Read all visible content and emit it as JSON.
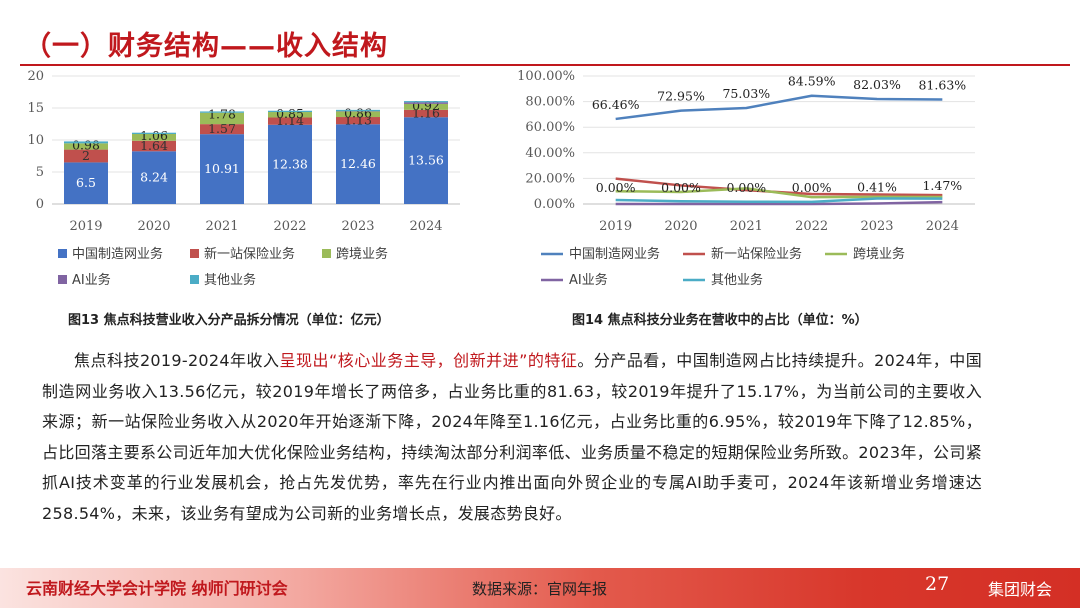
{
  "slide": {
    "title": "（一）财务结构——收入结构",
    "caption_left": "图13 焦点科技营业收入分产品拆分情况（单位：亿元）",
    "caption_right": "图14 焦点科技分业务在营收中的占比（单位：%）",
    "para_a": "焦点科技2019-2024年收入",
    "para_hl": "呈现出“核心业务主导，创新并进”的特征",
    "para_b": "。分产品看，中国制造网占比持续提升。2024年，中国制造网业务收入13.56亿元，较2019年增长了两倍多，占业务比重的81.63，较2019年提升了15.17%，为当前公司的主要收入来源；新一站保险业务收入从2020年开始逐渐下降，2024年降至1.16亿元，占业务比重的6.95%，较2019年下降了12.85%，占比回落主要系公司近年加大优化保险业务结构，持续淘汰部分利润率低、业务质量不稳定的短期保险业务所致。2023年，公司紧抓AI技术变革的行业发展机会，抢占先发优势，率先在行业内推出面向外贸企业的专属AI助手麦可，2024年该新增业务增速达258.54%，未来，该业务有望成为公司新的业务增长点，发展态势良好。",
    "footer_left": "云南财经大学会计学院 纳师门研讨会",
    "footer_mid": "数据来源：官网年报",
    "page_number": "27",
    "footer_right": "集团财会"
  },
  "colors": {
    "accent": "#c0181d",
    "blue": "#4472c4",
    "red": "#c0504d",
    "green": "#9bbb59",
    "purple": "#8064a2",
    "teal": "#4bacc6",
    "line_blue": "#4f81bd"
  },
  "chart_data": [
    {
      "type": "bar",
      "stacked": true,
      "categories": [
        "2019",
        "2020",
        "2021",
        "2022",
        "2023",
        "2024"
      ],
      "ylim": [
        0,
        20
      ],
      "yticks": [
        "0",
        "5",
        "10",
        "15",
        "20"
      ],
      "series": [
        {
          "name": "中国制造网业务",
          "values": [
            6.5,
            8.24,
            10.91,
            12.38,
            12.46,
            13.56
          ],
          "labels": [
            "6.5",
            "8.24",
            "10.91",
            "12.38",
            "12.46",
            "13.56"
          ]
        },
        {
          "name": "新一站保险业务",
          "values": [
            2,
            1.64,
            1.57,
            1.14,
            1.13,
            1.16
          ],
          "labels": [
            "2",
            "1.64",
            "1.57",
            "1.14",
            "1.13",
            "1.16"
          ]
        },
        {
          "name": "跨境业务",
          "values": [
            0.98,
            1.06,
            1.78,
            0.85,
            0.86,
            0.92
          ],
          "labels": [
            "0.98",
            "1.06",
            "1.78",
            "0.85",
            "0.86",
            "0.92"
          ]
        },
        {
          "name": "AI业务",
          "values": [
            0,
            0,
            0,
            0,
            0.06,
            0.24
          ],
          "labels": []
        },
        {
          "name": "其他业务",
          "values": [
            0.3,
            0.2,
            0.2,
            0.2,
            0.2,
            0.2
          ],
          "labels": []
        }
      ],
      "legend": "bottom"
    },
    {
      "type": "line",
      "categories": [
        "2019",
        "2020",
        "2021",
        "2022",
        "2023",
        "2024"
      ],
      "ylim": [
        0,
        100
      ],
      "yticks": [
        "0.00%",
        "20.00%",
        "40.00%",
        "60.00%",
        "80.00%",
        "100.00%"
      ],
      "series": [
        {
          "name": "中国制造网业务",
          "values": [
            66.46,
            72.95,
            75.03,
            84.59,
            82.03,
            81.63
          ],
          "labels": [
            "66.46%",
            "72.95%",
            "75.03%",
            "84.59%",
            "82.03%",
            "81.63%"
          ]
        },
        {
          "name": "新一站保险业务",
          "values": [
            19.8,
            14.5,
            10.8,
            7.8,
            7.4,
            6.95
          ],
          "labels": []
        },
        {
          "name": "跨境业务",
          "values": [
            10,
            9.4,
            12.2,
            5.4,
            5.6,
            5.5
          ],
          "labels": []
        },
        {
          "name": "AI业务",
          "values": [
            0,
            0,
            0,
            0,
            0.41,
            1.47
          ],
          "labels": [
            "0.00%",
            "0.00%",
            "0.00%",
            "0.00%",
            "0.41%",
            "1.47%"
          ]
        },
        {
          "name": "其他业务",
          "values": [
            3.1,
            2.1,
            1.8,
            1.7,
            4.3,
            4.2
          ],
          "labels": []
        }
      ],
      "legend": "bottom"
    }
  ]
}
